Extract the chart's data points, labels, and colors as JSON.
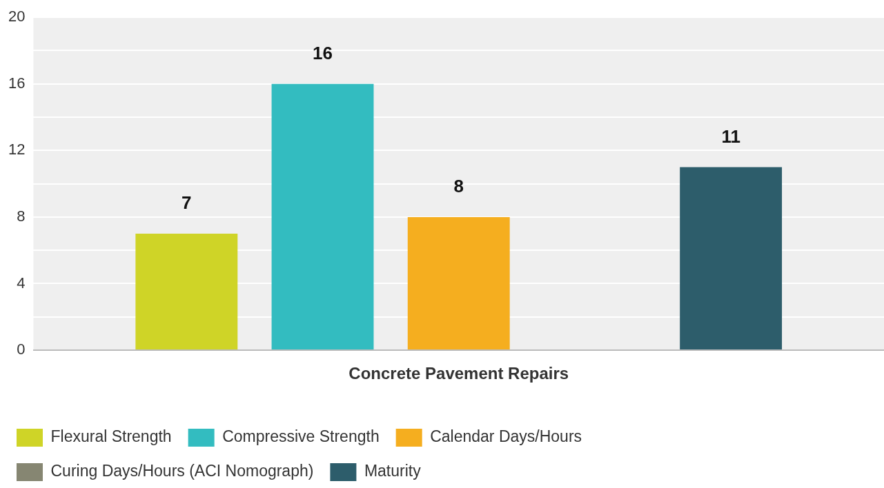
{
  "chart_data": {
    "type": "bar",
    "xlabel": "Concrete Pavement Repairs",
    "categories": [
      null
    ],
    "series": [
      {
        "name": "Flexural Strength",
        "color": "#cfd427",
        "values": [
          7
        ]
      },
      {
        "name": "Compressive Strength",
        "color": "#33bcc0",
        "values": [
          16
        ]
      },
      {
        "name": "Calendar Days/Hours",
        "color": "#f5ae1f",
        "values": [
          8
        ]
      },
      {
        "name": "Curing Days/Hours (ACI Nomograph)",
        "color": "#868672",
        "values": [
          null
        ]
      },
      {
        "name": "Maturity",
        "color": "#2d5d6b",
        "values": [
          11
        ]
      }
    ],
    "ylim": [
      0,
      20
    ],
    "yticks": [
      0,
      {
        "value": 2,
        "label": null
      },
      4,
      {
        "value": 6,
        "label": null
      },
      8,
      {
        "value": 10,
        "label": null
      },
      12,
      {
        "value": 14,
        "label": null
      },
      16,
      {
        "value": 18,
        "label": null
      },
      20
    ],
    "grid": "y",
    "legend": "bottom",
    "data_labels": true
  }
}
